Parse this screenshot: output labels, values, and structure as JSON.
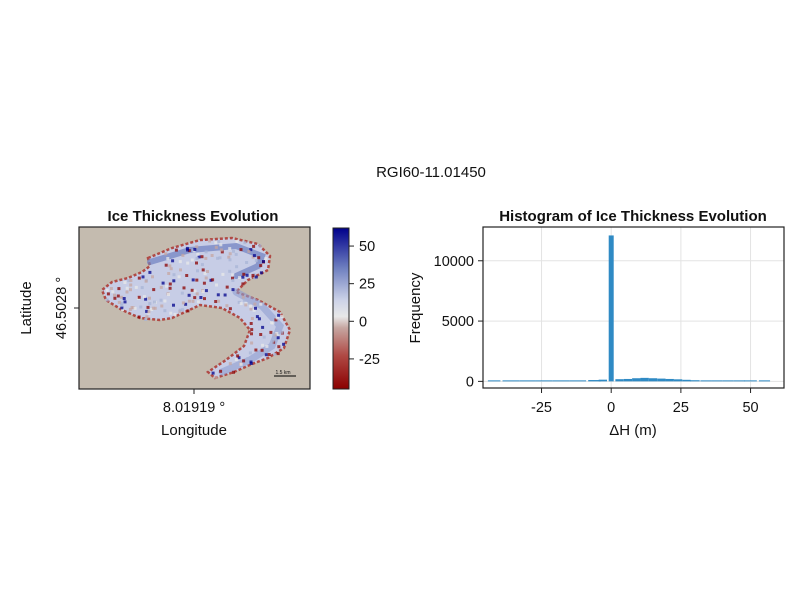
{
  "figure": {
    "suptitle": "RGI60-11.01450"
  },
  "chart_data": [
    {
      "type": "heatmap",
      "title": "Ice Thickness Evolution",
      "xlabel": "Longitude",
      "ylabel": "Latitude",
      "x_tick_label": "8.01919 °",
      "y_tick_label": "46.5028 °",
      "scalebar_label": "1.5 km",
      "background_color": "#c4bbaf",
      "colorbar": {
        "ticks": [
          -25,
          0,
          25,
          50
        ],
        "limits": [
          -45,
          62
        ],
        "colormap": [
          "#8b0000",
          "#c6a6a1",
          "#e8e8e8",
          "#a8b4d6",
          "#00008b"
        ]
      }
    },
    {
      "type": "bar",
      "title": "Histogram of Ice Thickness Evolution",
      "xlabel": "ΔH (m)",
      "ylabel": "Frequency",
      "xlim": [
        -46,
        62
      ],
      "ylim": [
        -550,
        12800
      ],
      "x_ticks": [
        -25,
        0,
        25,
        50
      ],
      "y_ticks": [
        0,
        5000,
        10000
      ],
      "bar_color": "#2f8ac4",
      "grid": true,
      "bins": [
        {
          "x": -42,
          "count": 12
        },
        {
          "x": -36,
          "count": 18
        },
        {
          "x": -30,
          "count": 25
        },
        {
          "x": -24,
          "count": 35
        },
        {
          "x": -18,
          "count": 50
        },
        {
          "x": -12,
          "count": 75
        },
        {
          "x": -6,
          "count": 110
        },
        {
          "x": -3,
          "count": 140
        },
        {
          "x": 0,
          "count": 12100
        },
        {
          "x": 3,
          "count": 180
        },
        {
          "x": 6,
          "count": 200
        },
        {
          "x": 9,
          "count": 260
        },
        {
          "x": 12,
          "count": 290
        },
        {
          "x": 15,
          "count": 260
        },
        {
          "x": 18,
          "count": 230
        },
        {
          "x": 21,
          "count": 200
        },
        {
          "x": 24,
          "count": 170
        },
        {
          "x": 27,
          "count": 130
        },
        {
          "x": 30,
          "count": 95
        },
        {
          "x": 34,
          "count": 70
        },
        {
          "x": 38,
          "count": 50
        },
        {
          "x": 42,
          "count": 35
        },
        {
          "x": 46,
          "count": 25
        },
        {
          "x": 50,
          "count": 15
        },
        {
          "x": 55,
          "count": 8
        }
      ]
    }
  ]
}
